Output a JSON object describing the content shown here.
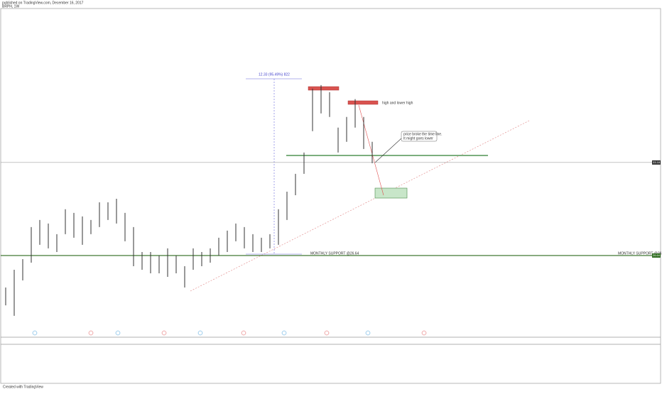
{
  "chart_data": {
    "type": "ohlc",
    "header": "published on TradingView.com, December 16, 2017",
    "symbol": "BRPH, 1W",
    "footer": "Created with TradingView",
    "categories": [
      null,
      null,
      null,
      null,
      null,
      null,
      null,
      null,
      null,
      null,
      null,
      null,
      null,
      null,
      null,
      null,
      null,
      null,
      null,
      null,
      null,
      null,
      null,
      null,
      null,
      null,
      null,
      null,
      null,
      null,
      null,
      null,
      null,
      null,
      null,
      null,
      null,
      null,
      null,
      null,
      null,
      null,
      null,
      null
    ],
    "series": [
      {
        "name": "BRPH",
        "color": "#333333",
        "high": [
          24.39,
          25.64,
          26.39,
          28.64,
          29.14,
          28.89,
          28.14,
          29.89,
          29.64,
          29.39,
          29.14,
          30.38,
          30.38,
          30.63,
          29.64,
          28.64,
          26.89,
          26.89,
          26.64,
          27.14,
          26.64,
          25.89,
          27.14,
          26.89,
          27.14,
          27.89,
          28.39,
          28.89,
          28.64,
          28.14,
          27.89,
          28.14,
          29.89,
          31.13,
          32.38,
          33.88,
          38.37,
          38.62,
          38.12,
          35.63,
          36.38,
          37.63,
          36.38,
          34.63
        ],
        "low": [
          23.14,
          22.4,
          24.89,
          26.14,
          27.39,
          27.14,
          26.89,
          28.14,
          27.89,
          27.39,
          28.14,
          28.64,
          29.14,
          28.89,
          27.64,
          25.89,
          25.64,
          25.39,
          25.39,
          25.14,
          25.39,
          24.39,
          25.64,
          25.89,
          26.14,
          26.64,
          26.89,
          27.64,
          27.14,
          26.89,
          26.89,
          27.14,
          27.39,
          29.14,
          30.88,
          32.38,
          35.38,
          36.63,
          36.38,
          33.88,
          34.63,
          35.63,
          34.13,
          33.13
        ]
      }
    ],
    "ylim": [
      20.9,
      44.0
    ],
    "last_price": 33.18,
    "support_level": 26.64,
    "support_label": "MONTHLY SUPPORT @26.64",
    "measure_label": "12.33 (95.49%) 822",
    "annotation_1": "high and lower high",
    "annotation_2": [
      "price broke the time line.",
      "It might goes lower"
    ]
  }
}
